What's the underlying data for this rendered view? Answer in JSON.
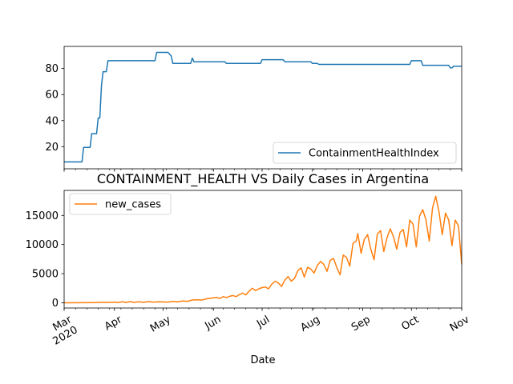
{
  "chart_data": [
    {
      "type": "line",
      "title": "",
      "xlabel": "",
      "ylabel": "",
      "xlim": [
        "2020-03-01",
        "2020-11-01"
      ],
      "ylim": [
        3,
        97
      ],
      "yticks": [
        20,
        40,
        60,
        80
      ],
      "grid": false,
      "legend": "lower-right",
      "series": [
        {
          "name": "ContainmentHealthIndex",
          "color": "#1f77b4",
          "points": [
            [
              "2020-03-01",
              8.3
            ],
            [
              "2020-03-12",
              8.3
            ],
            [
              "2020-03-13",
              19.4
            ],
            [
              "2020-03-17",
              19.4
            ],
            [
              "2020-03-18",
              30
            ],
            [
              "2020-03-21",
              30
            ],
            [
              "2020-03-22",
              42
            ],
            [
              "2020-03-23",
              42
            ],
            [
              "2020-03-24",
              67
            ],
            [
              "2020-03-25",
              77.6
            ],
            [
              "2020-03-27",
              77.6
            ],
            [
              "2020-03-28",
              86
            ],
            [
              "2020-04-26",
              86
            ],
            [
              "2020-04-27",
              92.4
            ],
            [
              "2020-05-04",
              92.4
            ],
            [
              "2020-05-06",
              89.6
            ],
            [
              "2020-05-07",
              84
            ],
            [
              "2020-05-18",
              84
            ],
            [
              "2020-05-19",
              88
            ],
            [
              "2020-05-20",
              85.2
            ],
            [
              "2020-06-08",
              85.2
            ],
            [
              "2020-06-09",
              84
            ],
            [
              "2020-06-30",
              84
            ],
            [
              "2020-07-01",
              86.8
            ],
            [
              "2020-07-14",
              86.8
            ],
            [
              "2020-07-15",
              85.2
            ],
            [
              "2020-07-31",
              85.2
            ],
            [
              "2020-08-01",
              84
            ],
            [
              "2020-08-04",
              84
            ],
            [
              "2020-08-05",
              83.2
            ],
            [
              "2020-09-30",
              83.2
            ],
            [
              "2020-10-01",
              86
            ],
            [
              "2020-10-07",
              86
            ],
            [
              "2020-10-08",
              82.5
            ],
            [
              "2020-10-24",
              82.5
            ],
            [
              "2020-10-25",
              80.5
            ],
            [
              "2020-10-26",
              80.5
            ],
            [
              "2020-10-27",
              81.8
            ],
            [
              "2020-11-01",
              81.8
            ]
          ]
        }
      ]
    },
    {
      "type": "line",
      "title": "CONTAINMENT_HEALTH VS Daily Cases in Argentina",
      "xlabel": "Date",
      "ylabel": "",
      "xlim": [
        "2020-03-01",
        "2020-11-01"
      ],
      "ylim": [
        -900,
        19300
      ],
      "yticks": [
        0,
        5000,
        10000,
        15000
      ],
      "xticks": [
        "Mar\n2020",
        "Apr",
        "May",
        "Jun",
        "Jul",
        "Aug",
        "Sep",
        "Oct",
        "Nov"
      ],
      "grid": false,
      "legend": "upper-left",
      "series": [
        {
          "name": "new_cases",
          "color": "#ff7f0e",
          "points": [
            [
              "2020-03-01",
              0
            ],
            [
              "2020-03-10",
              2
            ],
            [
              "2020-03-20",
              30
            ],
            [
              "2020-03-25",
              80
            ],
            [
              "2020-03-28",
              60
            ],
            [
              "2020-04-01",
              120
            ],
            [
              "2020-04-03",
              40
            ],
            [
              "2020-04-06",
              180
            ],
            [
              "2020-04-08",
              50
            ],
            [
              "2020-04-11",
              200
            ],
            [
              "2020-04-13",
              60
            ],
            [
              "2020-04-16",
              170
            ],
            [
              "2020-04-19",
              80
            ],
            [
              "2020-04-22",
              200
            ],
            [
              "2020-04-25",
              110
            ],
            [
              "2020-04-28",
              170
            ],
            [
              "2020-05-01",
              150
            ],
            [
              "2020-05-04",
              120
            ],
            [
              "2020-05-07",
              240
            ],
            [
              "2020-05-10",
              160
            ],
            [
              "2020-05-13",
              290
            ],
            [
              "2020-05-16",
              250
            ],
            [
              "2020-05-19",
              470
            ],
            [
              "2020-05-22",
              520
            ],
            [
              "2020-05-25",
              480
            ],
            [
              "2020-05-28",
              700
            ],
            [
              "2020-05-31",
              800
            ],
            [
              "2020-06-03",
              900
            ],
            [
              "2020-06-05",
              750
            ],
            [
              "2020-06-07",
              1050
            ],
            [
              "2020-06-09",
              900
            ],
            [
              "2020-06-11",
              1100
            ],
            [
              "2020-06-13",
              1250
            ],
            [
              "2020-06-15",
              1050
            ],
            [
              "2020-06-17",
              1400
            ],
            [
              "2020-06-19",
              1650
            ],
            [
              "2020-06-21",
              1350
            ],
            [
              "2020-06-23",
              2000
            ],
            [
              "2020-06-25",
              2500
            ],
            [
              "2020-06-27",
              2100
            ],
            [
              "2020-06-29",
              2400
            ],
            [
              "2020-07-01",
              2600
            ],
            [
              "2020-07-03",
              2700
            ],
            [
              "2020-07-05",
              2400
            ],
            [
              "2020-07-07",
              3200
            ],
            [
              "2020-07-09",
              3700
            ],
            [
              "2020-07-11",
              3400
            ],
            [
              "2020-07-13",
              2800
            ],
            [
              "2020-07-15",
              3900
            ],
            [
              "2020-07-17",
              4500
            ],
            [
              "2020-07-19",
              3700
            ],
            [
              "2020-07-21",
              4200
            ],
            [
              "2020-07-23",
              5500
            ],
            [
              "2020-07-25",
              6000
            ],
            [
              "2020-07-27",
              4400
            ],
            [
              "2020-07-29",
              6100
            ],
            [
              "2020-07-31",
              5800
            ],
            [
              "2020-08-02",
              5100
            ],
            [
              "2020-08-04",
              6400
            ],
            [
              "2020-08-06",
              7100
            ],
            [
              "2020-08-08",
              6600
            ],
            [
              "2020-08-10",
              5400
            ],
            [
              "2020-08-12",
              7300
            ],
            [
              "2020-08-14",
              7600
            ],
            [
              "2020-08-16",
              6100
            ],
            [
              "2020-08-18",
              4800
            ],
            [
              "2020-08-20",
              8200
            ],
            [
              "2020-08-22",
              7800
            ],
            [
              "2020-08-24",
              6300
            ],
            [
              "2020-08-26",
              10200
            ],
            [
              "2020-08-28",
              10600
            ],
            [
              "2020-08-29",
              11900
            ],
            [
              "2020-08-31",
              8500
            ],
            [
              "2020-09-02",
              10900
            ],
            [
              "2020-09-04",
              11700
            ],
            [
              "2020-09-06",
              9200
            ],
            [
              "2020-09-08",
              7400
            ],
            [
              "2020-09-10",
              11800
            ],
            [
              "2020-09-12",
              12400
            ],
            [
              "2020-09-14",
              8800
            ],
            [
              "2020-09-16",
              11200
            ],
            [
              "2020-09-18",
              12700
            ],
            [
              "2020-09-20",
              11300
            ],
            [
              "2020-09-22",
              9200
            ],
            [
              "2020-09-24",
              12100
            ],
            [
              "2020-09-26",
              12600
            ],
            [
              "2020-09-28",
              9600
            ],
            [
              "2020-09-30",
              14200
            ],
            [
              "2020-10-02",
              13500
            ],
            [
              "2020-10-04",
              9600
            ],
            [
              "2020-10-06",
              14900
            ],
            [
              "2020-10-08",
              16000
            ],
            [
              "2020-10-10",
              14200
            ],
            [
              "2020-10-12",
              10600
            ],
            [
              "2020-10-14",
              16300
            ],
            [
              "2020-10-16",
              18300
            ],
            [
              "2020-10-18",
              15600
            ],
            [
              "2020-10-20",
              11700
            ],
            [
              "2020-10-22",
              15400
            ],
            [
              "2020-10-24",
              14200
            ],
            [
              "2020-10-26",
              9800
            ],
            [
              "2020-10-28",
              14200
            ],
            [
              "2020-10-30",
              13200
            ],
            [
              "2020-11-01",
              6600
            ]
          ]
        }
      ]
    }
  ]
}
